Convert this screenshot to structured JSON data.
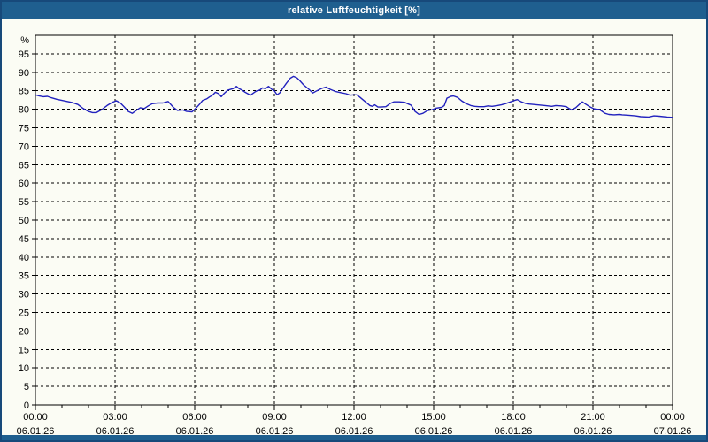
{
  "window": {
    "title": "relative Luftfeuchtigkeit [%]"
  },
  "colors": {
    "titlebar": "#1F5F8F",
    "window_border": "#17497A",
    "background": "#FBFCF4",
    "bottom_bar": "#1F5F8F",
    "grid": "#000000",
    "axis": "#000000",
    "text": "#000000",
    "series_line": "#2222BE"
  },
  "chart_data": {
    "type": "line",
    "title": "relative Luftfeuchtigkeit [%]",
    "ylabel": "%",
    "xlabel": "",
    "ylim": [
      0,
      100
    ],
    "ytick_step": 5,
    "ytick_labels": [
      "0",
      "5",
      "10",
      "15",
      "20",
      "25",
      "30",
      "35",
      "40",
      "45",
      "50",
      "55",
      "60",
      "65",
      "70",
      "75",
      "80",
      "85",
      "90",
      "95"
    ],
    "xlim_hours": [
      0,
      24
    ],
    "grid": true,
    "grid_style": "dashed",
    "legend": "none",
    "x_major_ticks": [
      {
        "hour": 0,
        "time": "00:00",
        "date": "06.01.26"
      },
      {
        "hour": 3,
        "time": "03:00",
        "date": "06.01.26"
      },
      {
        "hour": 6,
        "time": "06:00",
        "date": "06.01.26"
      },
      {
        "hour": 9,
        "time": "09:00",
        "date": "06.01.26"
      },
      {
        "hour": 12,
        "time": "12:00",
        "date": "06.01.26"
      },
      {
        "hour": 15,
        "time": "15:00",
        "date": "06.01.26"
      },
      {
        "hour": 18,
        "time": "18:00",
        "date": "06.01.26"
      },
      {
        "hour": 21,
        "time": "21:00",
        "date": "06.01.26"
      },
      {
        "hour": 24,
        "time": "00:00",
        "date": "07.01.26"
      }
    ],
    "x_minor_tick_every_hours": 1,
    "series": [
      {
        "name": "relative Luftfeuchtigkeit",
        "unit": "%",
        "color": "#2222BE",
        "points": [
          [
            0,
            83.9
          ],
          [
            0.15,
            83.6
          ],
          [
            0.3,
            83.4
          ],
          [
            0.45,
            83.5
          ],
          [
            0.6,
            83.1
          ],
          [
            0.8,
            82.7
          ],
          [
            1,
            82.4
          ],
          [
            1.2,
            82.1
          ],
          [
            1.4,
            81.8
          ],
          [
            1.6,
            81.3
          ],
          [
            1.8,
            80.2
          ],
          [
            2,
            79.4
          ],
          [
            2.15,
            79.1
          ],
          [
            2.3,
            79.1
          ],
          [
            2.5,
            79.9
          ],
          [
            2.7,
            81
          ],
          [
            2.9,
            81.9
          ],
          [
            3.05,
            82.3
          ],
          [
            3.2,
            81.7
          ],
          [
            3.35,
            80.6
          ],
          [
            3.5,
            79.4
          ],
          [
            3.65,
            78.9
          ],
          [
            3.8,
            79.7
          ],
          [
            3.95,
            80.4
          ],
          [
            4.1,
            80.2
          ],
          [
            4.25,
            80.9
          ],
          [
            4.4,
            81.5
          ],
          [
            4.6,
            81.7
          ],
          [
            4.8,
            81.7
          ],
          [
            5,
            82.1
          ],
          [
            5.2,
            80.5
          ],
          [
            5.35,
            79.7
          ],
          [
            5.55,
            79.8
          ],
          [
            5.7,
            79.4
          ],
          [
            5.9,
            79.3
          ],
          [
            6.05,
            80.3
          ],
          [
            6.2,
            81.5
          ],
          [
            6.3,
            82.4
          ],
          [
            6.45,
            82.8
          ],
          [
            6.55,
            83.3
          ],
          [
            6.67,
            83.8
          ],
          [
            6.78,
            84.6
          ],
          [
            6.9,
            84.2
          ],
          [
            7,
            83.4
          ],
          [
            7.1,
            84.2
          ],
          [
            7.25,
            85.2
          ],
          [
            7.45,
            85.6
          ],
          [
            7.57,
            86.2
          ],
          [
            7.67,
            85.6
          ],
          [
            7.78,
            85.2
          ],
          [
            7.9,
            84.6
          ],
          [
            8.1,
            83.8
          ],
          [
            8.25,
            84.6
          ],
          [
            8.35,
            85
          ],
          [
            8.45,
            85.2
          ],
          [
            8.55,
            85.8
          ],
          [
            8.67,
            85.6
          ],
          [
            8.78,
            86.2
          ],
          [
            8.9,
            85.4
          ],
          [
            9,
            85
          ],
          [
            9.1,
            83.9
          ],
          [
            9.2,
            84.4
          ],
          [
            9.3,
            85.5
          ],
          [
            9.45,
            87
          ],
          [
            9.6,
            88.4
          ],
          [
            9.72,
            88.9
          ],
          [
            9.85,
            88.5
          ],
          [
            9.95,
            87.8
          ],
          [
            10.1,
            86.6
          ],
          [
            10.3,
            85.4
          ],
          [
            10.45,
            84.4
          ],
          [
            10.6,
            85
          ],
          [
            10.8,
            85.7
          ],
          [
            10.95,
            86
          ],
          [
            11.1,
            85.4
          ],
          [
            11.3,
            84.8
          ],
          [
            11.5,
            84.5
          ],
          [
            11.7,
            84.2
          ],
          [
            11.85,
            83.8
          ],
          [
            12,
            83.9
          ],
          [
            12.1,
            83.9
          ],
          [
            12.2,
            83.4
          ],
          [
            12.4,
            82.2
          ],
          [
            12.6,
            81
          ],
          [
            12.7,
            80.8
          ],
          [
            12.78,
            81.2
          ],
          [
            12.9,
            80.6
          ],
          [
            13,
            80.6
          ],
          [
            13.2,
            80.7
          ],
          [
            13.35,
            81.5
          ],
          [
            13.5,
            82
          ],
          [
            13.7,
            82
          ],
          [
            13.9,
            81.9
          ],
          [
            14.05,
            81.4
          ],
          [
            14.15,
            81.1
          ],
          [
            14.3,
            79.4
          ],
          [
            14.45,
            78.6
          ],
          [
            14.6,
            78.9
          ],
          [
            14.75,
            79.6
          ],
          [
            14.95,
            79.9
          ],
          [
            15.1,
            80.3
          ],
          [
            15.3,
            80.5
          ],
          [
            15.4,
            81
          ],
          [
            15.5,
            83
          ],
          [
            15.65,
            83.5
          ],
          [
            15.75,
            83.6
          ],
          [
            15.9,
            83.2
          ],
          [
            16.05,
            82.3
          ],
          [
            16.2,
            81.6
          ],
          [
            16.4,
            81
          ],
          [
            16.55,
            80.8
          ],
          [
            16.7,
            80.7
          ],
          [
            16.9,
            80.7
          ],
          [
            17.05,
            80.9
          ],
          [
            17.2,
            80.8
          ],
          [
            17.4,
            81
          ],
          [
            17.55,
            81.2
          ],
          [
            17.7,
            81.5
          ],
          [
            17.9,
            82
          ],
          [
            18.05,
            82.4
          ],
          [
            18.15,
            82.6
          ],
          [
            18.3,
            82
          ],
          [
            18.45,
            81.6
          ],
          [
            18.6,
            81.4
          ],
          [
            18.9,
            81.2
          ],
          [
            19.2,
            81
          ],
          [
            19.45,
            80.8
          ],
          [
            19.6,
            81
          ],
          [
            19.8,
            80.9
          ],
          [
            20,
            80.7
          ],
          [
            20.1,
            80.2
          ],
          [
            20.2,
            79.8
          ],
          [
            20.35,
            80.4
          ],
          [
            20.5,
            81.4
          ],
          [
            20.6,
            82
          ],
          [
            20.7,
            81.5
          ],
          [
            20.9,
            80.6
          ],
          [
            21.05,
            80.1
          ],
          [
            21.25,
            79.9
          ],
          [
            21.45,
            78.9
          ],
          [
            21.6,
            78.6
          ],
          [
            21.8,
            78.5
          ],
          [
            22,
            78.6
          ],
          [
            22.1,
            78.5
          ],
          [
            22.3,
            78.4
          ],
          [
            22.6,
            78.2
          ],
          [
            22.8,
            78
          ],
          [
            23.1,
            77.9
          ],
          [
            23.3,
            78.2
          ],
          [
            23.5,
            78.1
          ],
          [
            23.8,
            77.9
          ],
          [
            24,
            77.8
          ]
        ]
      }
    ]
  }
}
